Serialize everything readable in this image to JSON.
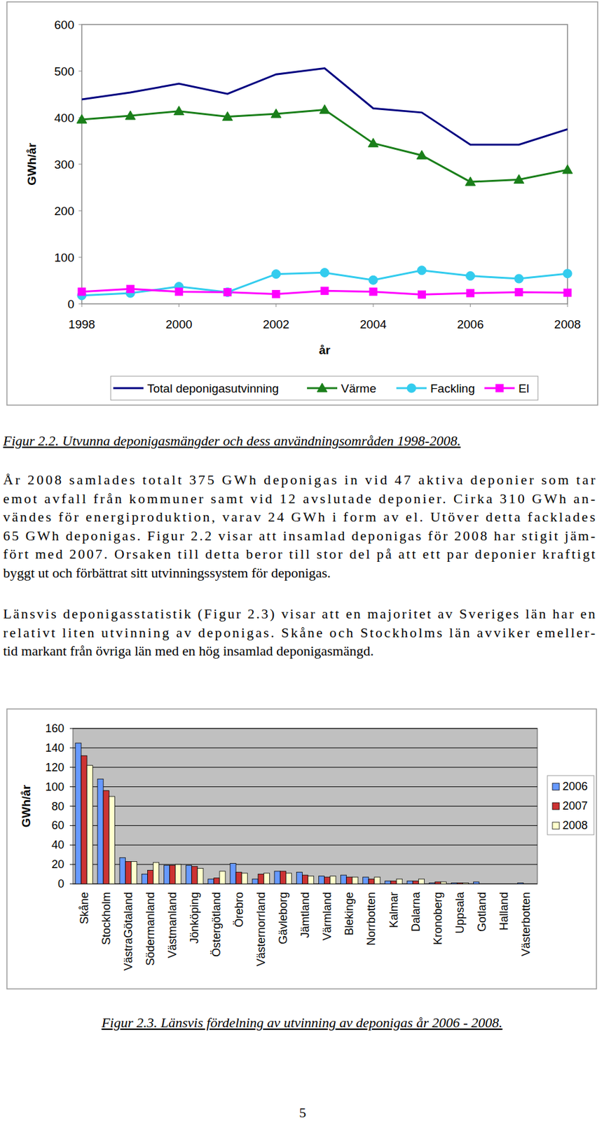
{
  "chart_data": [
    {
      "type": "line",
      "x_label": "år",
      "y_label": "GWh/år",
      "x": [
        1998,
        1999,
        2000,
        2001,
        2002,
        2003,
        2004,
        2005,
        2006,
        2007,
        2008
      ],
      "xlim": [
        1998,
        2008
      ],
      "xticks": [
        1998,
        2000,
        2002,
        2004,
        2006,
        2008
      ],
      "ylim": [
        0,
        600
      ],
      "yticks": [
        0,
        100,
        200,
        300,
        400,
        500,
        600
      ],
      "grid": false,
      "legend": "bottom",
      "series": [
        {
          "name": "Total deponigasutvinning",
          "color": "#000080",
          "marker": "none",
          "line_style": "solid",
          "values": [
            439,
            454,
            473,
            451,
            493,
            506,
            420,
            411,
            342,
            342,
            375
          ]
        },
        {
          "name": "Värme",
          "color": "#1a7f1a",
          "marker": "triangle",
          "line_style": "solid",
          "values": [
            396,
            404,
            414,
            402,
            408,
            417,
            345,
            319,
            262,
            267,
            288
          ]
        },
        {
          "name": "Fackling",
          "color": "#33ccee",
          "marker": "circle",
          "line_style": "solid",
          "values": [
            18,
            23,
            37,
            25,
            64,
            67,
            51,
            72,
            60,
            54,
            65
          ]
        },
        {
          "name": "El",
          "color": "#ff00ff",
          "marker": "square",
          "line_style": "solid",
          "values": [
            26,
            32,
            26,
            25,
            21,
            28,
            26,
            20,
            23,
            25,
            24
          ]
        }
      ]
    },
    {
      "type": "bar",
      "y_label": "GWh/år",
      "categories": [
        "Skåne",
        "Stockholm",
        "VästraGötaland",
        "Södermanland",
        "Västmanland",
        "Jönköping",
        "Östergötland",
        "Örebro",
        "Västernorrland",
        "Gävleborg",
        "Jämtland",
        "Värmland",
        "Blekinge",
        "Norrbotten",
        "Kalmar",
        "Dalarna",
        "Kronoberg",
        "Uppsala",
        "Gotland",
        "Halland",
        "Västerbotten"
      ],
      "ylim": [
        0,
        160
      ],
      "yticks": [
        0,
        20,
        40,
        60,
        80,
        100,
        120,
        140,
        160
      ],
      "grid": true,
      "legend": "right",
      "series": [
        {
          "name": "2006",
          "color": "#6699ff",
          "values": [
            145,
            108,
            27,
            10,
            19,
            19,
            5,
            21,
            5,
            13,
            12,
            8,
            9,
            7,
            3,
            3,
            1,
            1,
            2,
            0,
            1
          ]
        },
        {
          "name": "2007",
          "color": "#cc3333",
          "values": [
            132,
            96,
            23,
            14,
            19,
            18,
            6,
            12,
            10,
            13,
            9,
            7,
            7,
            5,
            3,
            3,
            2,
            1,
            0,
            0,
            0
          ]
        },
        {
          "name": "2008",
          "color": "#ffffcc",
          "values": [
            122,
            90,
            23,
            22,
            20,
            16,
            13,
            11,
            11,
            11,
            8,
            8,
            7,
            7,
            5,
            5,
            2,
            1,
            0,
            0,
            0
          ]
        }
      ]
    }
  ],
  "text": {
    "caption_1": "Figur 2.2. Utvunna deponigasmängder och dess användningsområden 1998-2008.",
    "paragraphs": [
      [
        "År 2008 samlades totalt 375 GWh deponigas in vid 47 aktiva deponier som tar",
        "emot avfall från kommuner samt vid 12 avslutade deponier. Cirka 310 GWh an-",
        "vändes för energiproduktion, varav 24 GWh i form av el. Utöver detta facklades",
        "65 GWh deponigas. Figur 2.2 visar att insamlad deponigas för 2008 har stigit jäm-",
        "fört med 2007. Orsaken till detta beror till stor del på att ett par deponier kraftigt",
        "byggt ut och förbättrat sitt utvinningssystem för deponigas."
      ],
      [
        "Länsvis deponigasstatistik (Figur 2.3) visar att en majoritet av Sveriges län har en",
        "relativt liten utvinning av deponigas. Skåne och Stockholms län avviker emeller-",
        "tid markant från övriga län med en hög insamlad deponigasmängd."
      ]
    ],
    "caption_2": "Figur 2.3. Länsvis fördelning av utvinning av deponigas år 2006 - 2008.",
    "page_number": 5
  }
}
